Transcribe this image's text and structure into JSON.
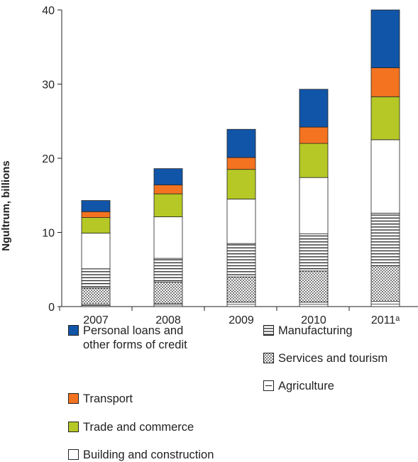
{
  "chart_data": {
    "type": "stacked_bar",
    "y_label": "Ngultrum, billions",
    "categories": [
      "2007",
      "2008",
      "2009",
      "2010",
      "2011ᵃ"
    ],
    "series": [
      {
        "name": "Agriculture",
        "color": "#ffffff",
        "pattern": "midline",
        "values": [
          0.3,
          0.4,
          0.6,
          0.6,
          0.7
        ]
      },
      {
        "name": "Services and tourism",
        "color": "#ffffff",
        "pattern": "dots",
        "values": [
          2.2,
          2.9,
          3.4,
          4.2,
          4.8
        ]
      },
      {
        "name": "Manufacturing",
        "color": "#ffffff",
        "pattern": "stripes",
        "values": [
          2.6,
          3.2,
          4.5,
          5.0,
          7.1
        ]
      },
      {
        "name": "Building and construction",
        "color": "#ffffff",
        "values": [
          4.8,
          5.6,
          6.0,
          7.6,
          9.9
        ]
      },
      {
        "name": "Trade and commerce",
        "color": "#b5c825",
        "values": [
          2.1,
          3.1,
          4.0,
          4.6,
          5.8
        ]
      },
      {
        "name": "Transport",
        "color": "#f47321",
        "values": [
          0.8,
          1.2,
          1.6,
          2.2,
          3.9
        ]
      },
      {
        "name": "Personal loans and other forms of credit",
        "color": "#1155a8",
        "values": [
          1.5,
          2.2,
          3.8,
          5.1,
          7.8
        ]
      }
    ],
    "ylim": [
      0,
      40
    ],
    "yticks": [
      0,
      10,
      20,
      30,
      40
    ]
  }
}
